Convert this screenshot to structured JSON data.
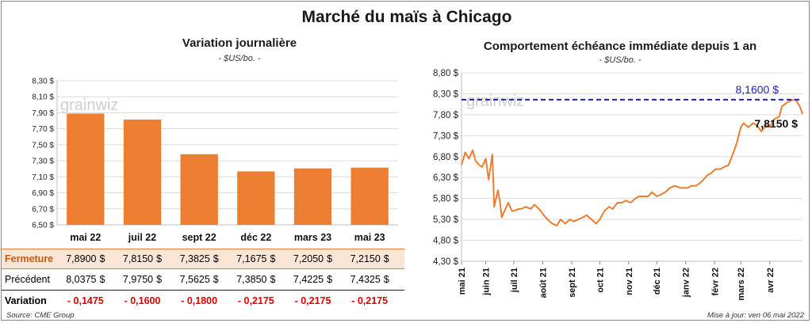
{
  "main_title": "Marché du maïs à Chicago",
  "left_panel": {
    "title": "Variation  journalière",
    "unit": "- $US/bo. -",
    "watermark": "grainwiz"
  },
  "right_panel": {
    "title": "Comportement  échéance immédiate depuis 1 an",
    "unit": "- $US/bo. -",
    "watermark": "grainwiz",
    "high_label": "8,1600 $",
    "last_label": "7,8150 $"
  },
  "table": {
    "rows": [
      {
        "label": "Fermeture",
        "values": [
          "7,8900",
          "7,8150",
          "7,3825",
          "7,1675",
          "7,2050",
          "7,2150"
        ],
        "dollar": "$"
      },
      {
        "label": "Précédent",
        "values": [
          "8,0375",
          "7,9750",
          "7,5625",
          "7,3850",
          "7,4225",
          "7,4325"
        ],
        "dollar": "$"
      },
      {
        "label": "Variation",
        "values": [
          "- 0,1475",
          "- 0,1600",
          "- 0,1800",
          "- 0,2175",
          "- 0,2175",
          "- 0,2175"
        ],
        "dollar": ""
      }
    ]
  },
  "footer": {
    "source": "Source: CME Group",
    "updated": "Mise à jour: ven 06 mai 2022"
  },
  "colors": {
    "bar": "#ed7d31",
    "line": "#ed7d31",
    "ref_line": "#1f1fb4",
    "negative": "#e00000",
    "highlight_row": "#fbe5d6"
  },
  "chart_data": [
    {
      "type": "bar",
      "categories": [
        "mai 22",
        "juil 22",
        "sept 22",
        "déc 22",
        "mars 23",
        "mai 23"
      ],
      "values": [
        7.89,
        7.815,
        7.3825,
        7.1675,
        7.205,
        7.215
      ],
      "ylim": [
        6.5,
        8.3
      ],
      "yticks": [
        "6,50 $",
        "6,70 $",
        "6,90 $",
        "7,10 $",
        "7,30 $",
        "7,50 $",
        "7,70 $",
        "7,90 $",
        "8,10 $",
        "8,30 $"
      ],
      "grid": true
    },
    {
      "type": "line",
      "ylim": [
        4.3,
        8.8
      ],
      "yticks": [
        "4,30 $",
        "4,80 $",
        "5,30 $",
        "5,80 $",
        "6,30 $",
        "6,80 $",
        "7,30 $",
        "7,80 $",
        "8,30 $",
        "8,80 $"
      ],
      "xticks": [
        "mai 21",
        "juin 21",
        "juil 21",
        "août 21",
        "sept 21",
        "oct 21",
        "nov 21",
        "déc 21",
        "janv 22",
        "févr 22",
        "mars 22",
        "avr 22"
      ],
      "x_range": [
        "2021-05-06",
        "2022-05-06"
      ],
      "reference_line": 8.16,
      "grid": true,
      "series": [
        {
          "x": [
            "2021-05-06",
            "2021-05-10",
            "2021-05-14",
            "2021-05-18",
            "2021-05-21",
            "2021-05-25",
            "2021-05-28",
            "2021-06-01",
            "2021-06-04",
            "2021-06-08",
            "2021-06-10",
            "2021-06-14",
            "2021-06-16",
            "2021-06-18",
            "2021-06-22",
            "2021-06-25",
            "2021-06-29",
            "2021-07-01",
            "2021-07-06",
            "2021-07-09",
            "2021-07-14",
            "2021-07-19",
            "2021-07-23",
            "2021-07-28",
            "2021-08-02",
            "2021-08-06",
            "2021-08-11",
            "2021-08-16",
            "2021-08-20",
            "2021-08-25",
            "2021-08-30",
            "2021-09-03",
            "2021-09-08",
            "2021-09-13",
            "2021-09-17",
            "2021-09-22",
            "2021-09-27",
            "2021-10-01",
            "2021-10-06",
            "2021-10-11",
            "2021-10-15",
            "2021-10-20",
            "2021-10-25",
            "2021-10-29",
            "2021-11-03",
            "2021-11-08",
            "2021-11-12",
            "2021-11-17",
            "2021-11-22",
            "2021-11-26",
            "2021-12-01",
            "2021-12-06",
            "2021-12-10",
            "2021-12-15",
            "2021-12-20",
            "2021-12-27",
            "2022-01-03",
            "2022-01-07",
            "2022-01-12",
            "2022-01-18",
            "2022-01-24",
            "2022-01-28",
            "2022-02-02",
            "2022-02-07",
            "2022-02-11",
            "2022-02-16",
            "2022-02-22",
            "2022-02-25",
            "2022-03-01",
            "2022-03-04",
            "2022-03-09",
            "2022-03-14",
            "2022-03-18",
            "2022-03-23",
            "2022-03-28",
            "2022-04-01",
            "2022-04-06",
            "2022-04-11",
            "2022-04-14",
            "2022-04-20",
            "2022-04-25",
            "2022-04-29",
            "2022-05-03",
            "2022-05-06"
          ],
          "y": [
            6.6,
            6.9,
            6.75,
            6.95,
            6.7,
            6.6,
            6.55,
            6.75,
            6.25,
            6.85,
            5.6,
            6.0,
            5.75,
            5.35,
            5.55,
            5.7,
            5.5,
            5.5,
            5.55,
            5.55,
            5.6,
            5.55,
            5.65,
            5.55,
            5.4,
            5.3,
            5.2,
            5.15,
            5.3,
            5.2,
            5.3,
            5.25,
            5.3,
            5.35,
            5.4,
            5.3,
            5.2,
            5.3,
            5.5,
            5.6,
            5.55,
            5.7,
            5.7,
            5.75,
            5.7,
            5.8,
            5.85,
            5.85,
            5.85,
            5.95,
            5.85,
            5.9,
            5.95,
            6.05,
            6.1,
            6.05,
            6.05,
            6.1,
            6.1,
            6.2,
            6.35,
            6.4,
            6.5,
            6.5,
            6.55,
            6.6,
            6.95,
            7.15,
            7.5,
            7.6,
            7.5,
            7.6,
            7.55,
            7.4,
            7.55,
            7.5,
            7.7,
            7.75,
            8.0,
            8.1,
            8.15,
            8.15,
            8.0,
            7.815
          ]
        }
      ]
    }
  ]
}
